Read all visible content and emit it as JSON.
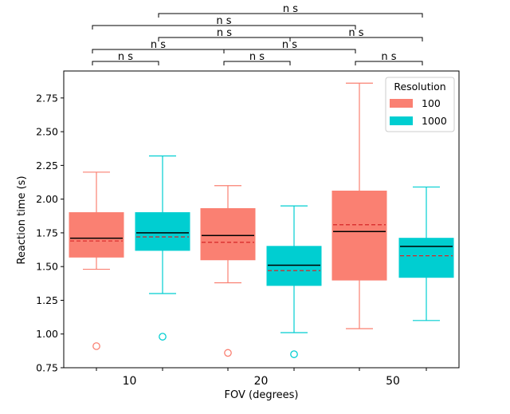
{
  "chart_data": {
    "type": "box",
    "title": "",
    "xlabel": "FOV (degrees)",
    "ylabel": "Reaction time (s)",
    "ylim": [
      0.75,
      2.95
    ],
    "yticks": [
      0.75,
      1.0,
      1.25,
      1.5,
      1.75,
      2.0,
      2.25,
      2.5,
      2.75
    ],
    "ytick_labels": [
      "0.75",
      "1.00",
      "1.25",
      "1.50",
      "1.75",
      "2.00",
      "2.25",
      "2.50",
      "2.75"
    ],
    "categories": [
      "10",
      "20",
      "50"
    ],
    "legend": {
      "title": "Resolution",
      "position": "top-right",
      "entries": [
        {
          "label": "100",
          "color": "#fa8072"
        },
        {
          "label": "1000",
          "color": "#00ced1"
        }
      ]
    },
    "colors": {
      "median": "#000000",
      "mean": "#d62728"
    },
    "boxes": [
      {
        "category": "10",
        "series": "100",
        "whisker_low": 1.48,
        "q1": 1.57,
        "median": 1.71,
        "mean": 1.69,
        "q3": 1.9,
        "whisker_high": 2.2,
        "outliers": [
          0.91
        ]
      },
      {
        "category": "10",
        "series": "1000",
        "whisker_low": 1.3,
        "q1": 1.62,
        "median": 1.75,
        "mean": 1.72,
        "q3": 1.9,
        "whisker_high": 2.32,
        "outliers": [
          0.98
        ]
      },
      {
        "category": "20",
        "series": "100",
        "whisker_low": 1.38,
        "q1": 1.55,
        "median": 1.73,
        "mean": 1.68,
        "q3": 1.93,
        "whisker_high": 2.1,
        "outliers": [
          0.86
        ]
      },
      {
        "category": "20",
        "series": "1000",
        "whisker_low": 1.01,
        "q1": 1.36,
        "median": 1.51,
        "mean": 1.47,
        "q3": 1.65,
        "whisker_high": 1.95,
        "outliers": [
          0.85
        ]
      },
      {
        "category": "50",
        "series": "100",
        "whisker_low": 1.04,
        "q1": 1.4,
        "median": 1.76,
        "mean": 1.81,
        "q3": 2.06,
        "whisker_high": 2.86,
        "outliers": []
      },
      {
        "category": "50",
        "series": "1000",
        "whisker_low": 1.1,
        "q1": 1.42,
        "median": 1.65,
        "mean": 1.58,
        "q3": 1.71,
        "whisker_high": 2.09,
        "outliers": []
      }
    ],
    "significance": [
      {
        "from": 0,
        "to": 1,
        "label": "n s"
      },
      {
        "from": 2,
        "to": 3,
        "label": "n s"
      },
      {
        "from": 4,
        "to": 5,
        "label": "n s"
      },
      {
        "from": 0,
        "to": 2,
        "label": "n s"
      },
      {
        "from": 2,
        "to": 4,
        "label": "n s"
      },
      {
        "from": 1,
        "to": 3,
        "label": "n s"
      },
      {
        "from": 3,
        "to": 5,
        "label": "n s"
      },
      {
        "from": 0,
        "to": 4,
        "label": "n s"
      },
      {
        "from": 1,
        "to": 5,
        "label": "n s"
      }
    ]
  }
}
